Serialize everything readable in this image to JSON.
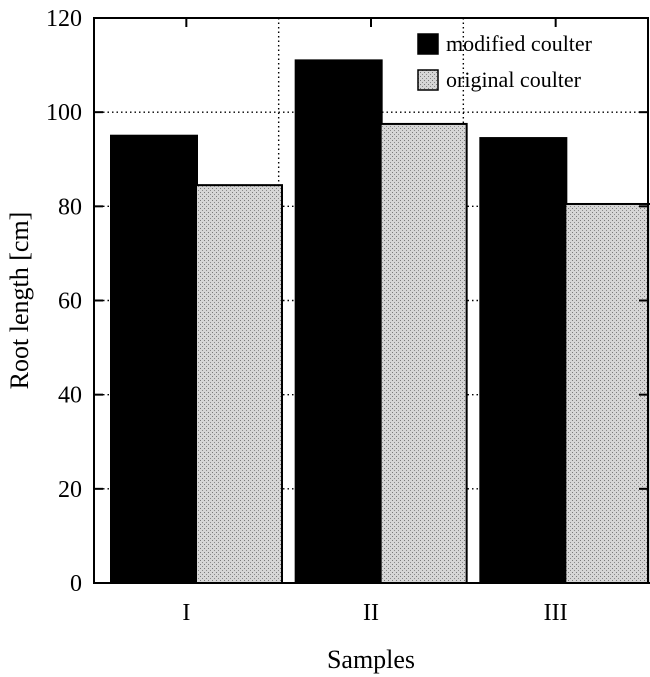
{
  "chart_data": {
    "type": "bar",
    "title": "",
    "xlabel": "Samples",
    "ylabel": "Root length [cm]",
    "ylim": [
      0,
      120
    ],
    "yticks": [
      "0",
      "20",
      "40",
      "60",
      "80",
      "100",
      "120"
    ],
    "categories": [
      "I",
      "II",
      "III"
    ],
    "series": [
      {
        "name": "modified coulter",
        "values": [
          95,
          111,
          94.5
        ]
      },
      {
        "name": "original coulter",
        "values": [
          84.5,
          97.5,
          80.5
        ]
      }
    ],
    "grid": true,
    "legend_position": "top-right"
  },
  "colors": {
    "modified": "#000000",
    "original": "#c8c8c8",
    "grid": "#000000"
  }
}
